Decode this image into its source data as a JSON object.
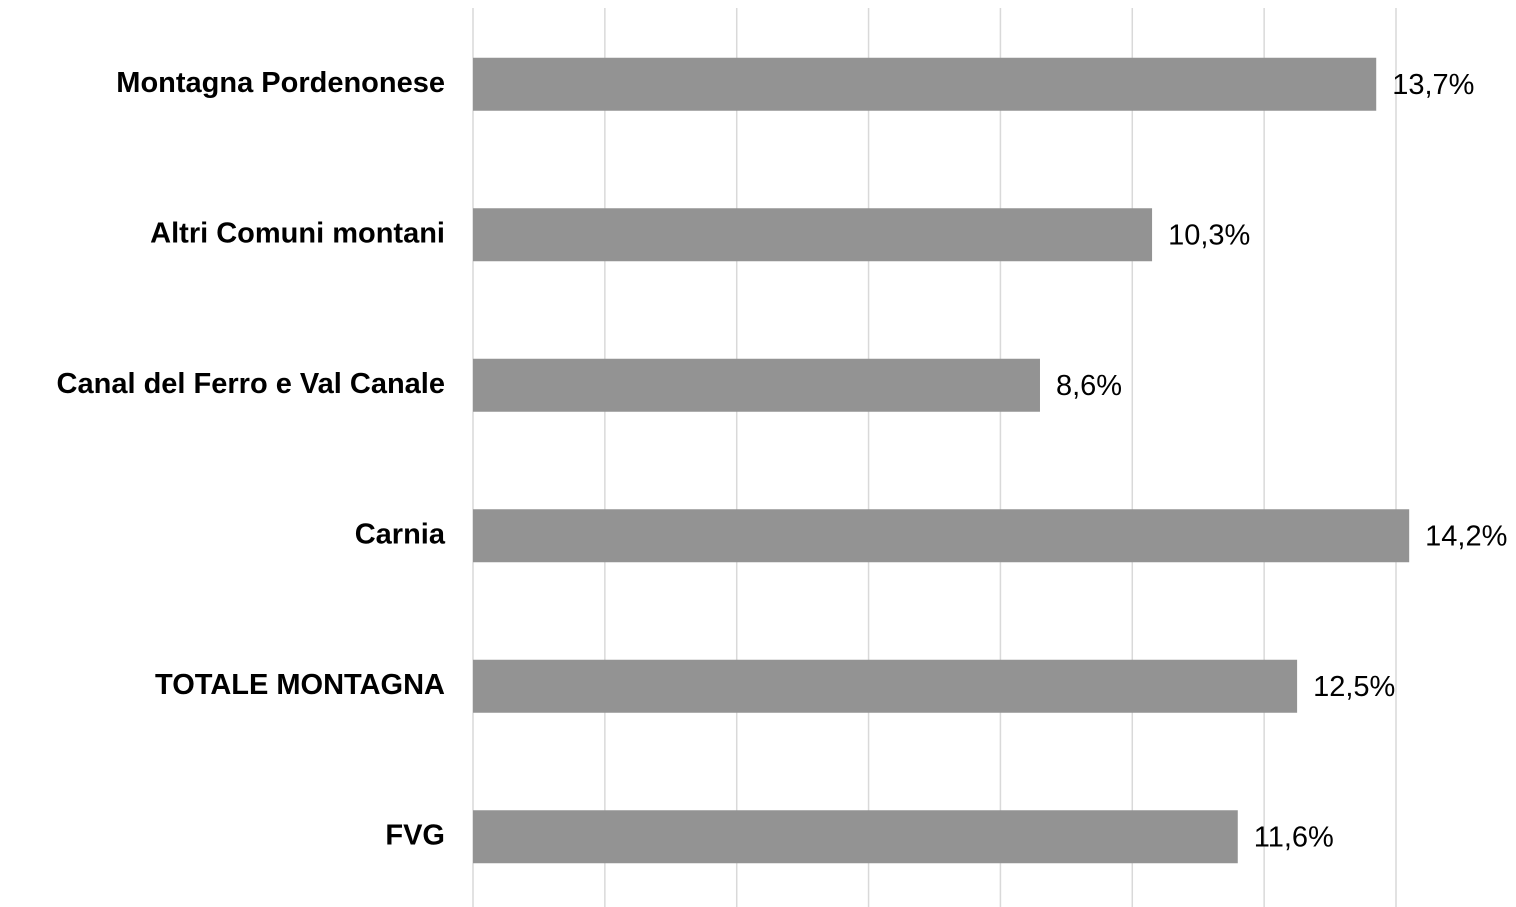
{
  "chart_data": {
    "type": "hbar",
    "categories": [
      "Montagna Pordenonese",
      "Altri Comuni montani",
      "Canal del Ferro e Val Canale",
      "Carnia",
      "TOTALE MONTAGNA",
      "FVG"
    ],
    "values": [
      13.7,
      10.3,
      8.6,
      14.2,
      12.5,
      11.6
    ],
    "value_labels": [
      "13,7%",
      "10,3%",
      "8,6%",
      "14,2%",
      "12,5%",
      "11,6%"
    ],
    "color": "#939393",
    "xlim": [
      0,
      14
    ],
    "xticks": [
      0,
      2,
      4,
      6,
      8,
      10,
      12,
      14
    ],
    "grid": true
  }
}
